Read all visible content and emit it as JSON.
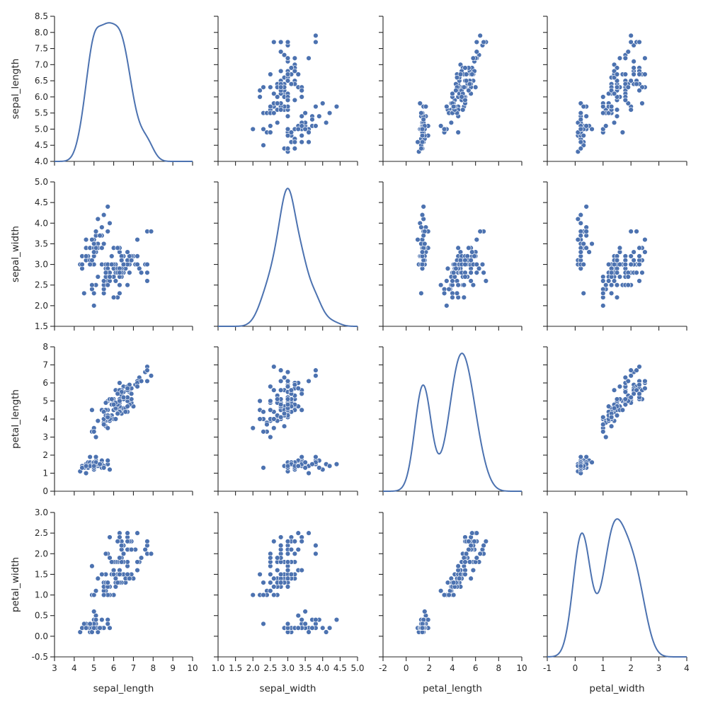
{
  "chart_data": {
    "type": "scatter",
    "kind": "pairplot",
    "diag_kind": "kde",
    "grid": false,
    "variables": [
      "sepal_length",
      "sepal_width",
      "petal_length",
      "petal_width"
    ],
    "colors": {
      "marker": "#4c72b0",
      "kde": "#4c72b0",
      "axes": "#262626",
      "marker_edge": "#ffffff"
    },
    "axes": {
      "sepal_length": {
        "lim": [
          3,
          10
        ],
        "ticks": [
          3,
          4,
          5,
          6,
          7,
          8,
          9,
          10
        ],
        "tick_labels": [
          "3",
          "4",
          "5",
          "6",
          "7",
          "8",
          "9",
          "10"
        ]
      },
      "sepal_width": {
        "lim": [
          1.0,
          5.0
        ],
        "ticks": [
          1.0,
          1.5,
          2.0,
          2.5,
          3.0,
          3.5,
          4.0,
          4.5,
          5.0
        ],
        "tick_labels": [
          "1.0",
          "1.5",
          "2.0",
          "2.5",
          "3.0",
          "3.5",
          "4.0",
          "4.5",
          "5.0"
        ]
      },
      "petal_length": {
        "lim": [
          -2,
          10
        ],
        "ticks": [
          -2,
          0,
          2,
          4,
          6,
          8,
          10
        ],
        "tick_labels": [
          "-2",
          "0",
          "2",
          "4",
          "6",
          "8",
          "10"
        ]
      },
      "petal_width": {
        "lim": [
          -1,
          4
        ],
        "ticks": [
          -1,
          0,
          1,
          2,
          3,
          4
        ],
        "tick_labels": [
          "-1",
          "0",
          "1",
          "2",
          "3",
          "4"
        ]
      }
    },
    "row_axes": {
      "sepal_length": {
        "lim": [
          4.0,
          8.5
        ],
        "ticks": [
          4.0,
          4.5,
          5.0,
          5.5,
          6.0,
          6.5,
          7.0,
          7.5,
          8.0,
          8.5
        ],
        "tick_labels": [
          "4.0",
          "4.5",
          "5.0",
          "5.5",
          "6.0",
          "6.5",
          "7.0",
          "7.5",
          "8.0",
          "8.5"
        ]
      },
      "sepal_width": {
        "lim": [
          1.5,
          5.0
        ],
        "ticks": [
          1.5,
          2.0,
          2.5,
          3.0,
          3.5,
          4.0,
          4.5,
          5.0
        ],
        "tick_labels": [
          "1.5",
          "2.0",
          "2.5",
          "3.0",
          "3.5",
          "4.0",
          "4.5",
          "5.0"
        ]
      },
      "petal_length": {
        "lim": [
          0,
          8
        ],
        "ticks": [
          0,
          1,
          2,
          3,
          4,
          5,
          6,
          7,
          8
        ],
        "tick_labels": [
          "0",
          "1",
          "2",
          "3",
          "4",
          "5",
          "6",
          "7",
          "8"
        ]
      },
      "petal_width": {
        "lim": [
          -0.5,
          3.0
        ],
        "ticks": [
          -0.5,
          0.0,
          0.5,
          1.0,
          1.5,
          2.0,
          2.5,
          3.0
        ],
        "tick_labels": [
          "-0.5",
          "0.0",
          "0.5",
          "1.0",
          "1.5",
          "2.0",
          "2.5",
          "3.0"
        ]
      }
    },
    "data": {
      "sepal_length": [
        5.1,
        4.9,
        4.7,
        4.6,
        5.0,
        5.4,
        4.6,
        5.0,
        4.4,
        4.9,
        5.4,
        4.8,
        4.8,
        4.3,
        5.8,
        5.7,
        5.4,
        5.1,
        5.7,
        5.1,
        5.4,
        5.1,
        4.6,
        5.1,
        4.8,
        5.0,
        5.0,
        5.2,
        5.2,
        4.7,
        4.8,
        5.4,
        5.2,
        5.5,
        4.9,
        5.0,
        5.5,
        4.9,
        4.4,
        5.1,
        5.0,
        4.5,
        4.4,
        5.0,
        5.1,
        4.8,
        5.1,
        4.6,
        5.3,
        5.0,
        7.0,
        6.4,
        6.9,
        5.5,
        6.5,
        5.7,
        6.3,
        4.9,
        6.6,
        5.2,
        5.0,
        5.9,
        6.0,
        6.1,
        5.6,
        6.7,
        5.6,
        5.8,
        6.2,
        5.6,
        5.9,
        6.1,
        6.3,
        6.1,
        6.4,
        6.6,
        6.8,
        6.7,
        6.0,
        5.7,
        5.5,
        5.5,
        5.8,
        6.0,
        5.4,
        6.0,
        6.7,
        6.3,
        5.6,
        5.5,
        5.5,
        6.1,
        5.8,
        5.0,
        5.6,
        5.7,
        5.7,
        6.2,
        5.1,
        5.7,
        6.3,
        5.8,
        7.1,
        6.3,
        6.5,
        7.6,
        4.9,
        7.3,
        6.7,
        7.2,
        6.5,
        6.4,
        6.8,
        5.7,
        5.8,
        6.4,
        6.5,
        7.7,
        7.7,
        6.0,
        6.9,
        5.6,
        7.7,
        6.3,
        6.7,
        7.2,
        6.2,
        6.1,
        6.4,
        7.2,
        7.4,
        7.9,
        6.4,
        6.3,
        6.1,
        7.7,
        6.3,
        6.4,
        6.0,
        6.9,
        6.7,
        6.9,
        5.8,
        6.8,
        6.7,
        6.7,
        6.3,
        6.5,
        6.2,
        5.9
      ],
      "sepal_width": [
        3.5,
        3.0,
        3.2,
        3.1,
        3.6,
        3.9,
        3.4,
        3.4,
        2.9,
        3.1,
        3.7,
        3.4,
        3.0,
        3.0,
        4.0,
        4.4,
        3.9,
        3.5,
        3.8,
        3.8,
        3.4,
        3.7,
        3.6,
        3.3,
        3.4,
        3.0,
        3.4,
        3.5,
        3.4,
        3.2,
        3.1,
        3.4,
        4.1,
        4.2,
        3.1,
        3.2,
        3.5,
        3.6,
        3.0,
        3.4,
        3.5,
        2.3,
        3.2,
        3.5,
        3.8,
        3.0,
        3.8,
        3.2,
        3.7,
        3.3,
        3.2,
        3.2,
        3.1,
        2.3,
        2.8,
        2.8,
        3.3,
        2.4,
        2.9,
        2.7,
        2.0,
        3.0,
        2.2,
        2.9,
        2.9,
        3.1,
        3.0,
        2.7,
        2.2,
        2.5,
        3.2,
        2.8,
        2.5,
        2.8,
        2.9,
        3.0,
        2.8,
        3.0,
        2.9,
        2.6,
        2.4,
        2.4,
        2.7,
        2.7,
        3.0,
        3.4,
        3.1,
        2.3,
        3.0,
        2.5,
        2.6,
        3.0,
        2.6,
        2.3,
        2.7,
        3.0,
        2.9,
        2.9,
        2.5,
        2.8,
        3.3,
        2.7,
        3.0,
        2.9,
        3.0,
        3.0,
        2.5,
        2.9,
        2.5,
        3.6,
        3.2,
        2.7,
        3.0,
        2.5,
        2.8,
        3.2,
        3.0,
        3.8,
        2.6,
        2.2,
        3.2,
        2.8,
        2.8,
        2.7,
        3.3,
        3.2,
        2.8,
        3.0,
        2.8,
        3.0,
        2.8,
        3.8,
        2.8,
        2.8,
        2.6,
        3.0,
        3.4,
        3.1,
        3.0,
        3.1,
        3.1,
        3.1,
        2.7,
        3.2,
        3.3,
        3.0,
        2.5,
        3.0,
        3.4,
        3.0
      ],
      "petal_length": [
        1.4,
        1.4,
        1.3,
        1.5,
        1.4,
        1.7,
        1.4,
        1.5,
        1.4,
        1.5,
        1.5,
        1.6,
        1.4,
        1.1,
        1.2,
        1.5,
        1.3,
        1.4,
        1.7,
        1.5,
        1.7,
        1.5,
        1.0,
        1.7,
        1.9,
        1.6,
        1.6,
        1.5,
        1.4,
        1.6,
        1.6,
        1.5,
        1.5,
        1.4,
        1.5,
        1.2,
        1.3,
        1.4,
        1.3,
        1.5,
        1.3,
        1.3,
        1.3,
        1.6,
        1.9,
        1.4,
        1.6,
        1.4,
        1.5,
        1.4,
        4.7,
        4.5,
        4.9,
        4.0,
        4.6,
        4.5,
        4.7,
        3.3,
        4.6,
        3.9,
        3.5,
        4.2,
        4.0,
        4.7,
        3.6,
        4.4,
        4.5,
        4.1,
        4.5,
        3.9,
        4.8,
        4.0,
        4.9,
        4.7,
        4.3,
        4.4,
        4.8,
        5.0,
        4.5,
        3.5,
        3.8,
        3.7,
        3.9,
        5.1,
        4.5,
        4.5,
        4.7,
        4.4,
        4.1,
        4.0,
        4.4,
        4.6,
        4.0,
        3.3,
        4.2,
        4.2,
        4.2,
        4.3,
        3.0,
        4.1,
        6.0,
        5.1,
        5.9,
        5.6,
        5.8,
        6.6,
        4.5,
        6.3,
        5.8,
        6.1,
        5.1,
        5.3,
        5.5,
        5.0,
        5.1,
        5.3,
        5.5,
        6.7,
        6.9,
        5.0,
        5.7,
        4.9,
        6.7,
        4.9,
        5.7,
        6.0,
        4.8,
        4.9,
        5.6,
        5.8,
        6.1,
        6.4,
        5.6,
        5.1,
        5.6,
        6.1,
        5.6,
        5.5,
        4.8,
        5.4,
        5.6,
        5.1,
        5.1,
        5.9,
        5.7,
        5.2,
        5.0,
        5.2,
        5.4,
        5.1
      ],
      "petal_width": [
        0.2,
        0.2,
        0.2,
        0.2,
        0.2,
        0.4,
        0.3,
        0.2,
        0.2,
        0.1,
        0.2,
        0.2,
        0.1,
        0.1,
        0.2,
        0.4,
        0.4,
        0.3,
        0.3,
        0.3,
        0.2,
        0.4,
        0.2,
        0.5,
        0.2,
        0.2,
        0.4,
        0.2,
        0.2,
        0.2,
        0.2,
        0.4,
        0.1,
        0.2,
        0.2,
        0.2,
        0.2,
        0.1,
        0.2,
        0.2,
        0.3,
        0.3,
        0.2,
        0.6,
        0.4,
        0.3,
        0.2,
        0.2,
        0.2,
        0.2,
        1.4,
        1.5,
        1.5,
        1.3,
        1.5,
        1.3,
        1.6,
        1.0,
        1.3,
        1.4,
        1.0,
        1.5,
        1.0,
        1.4,
        1.3,
        1.4,
        1.5,
        1.0,
        1.5,
        1.1,
        1.8,
        1.3,
        1.5,
        1.2,
        1.3,
        1.4,
        1.4,
        1.7,
        1.5,
        1.0,
        1.1,
        1.0,
        1.2,
        1.6,
        1.5,
        1.6,
        1.5,
        1.3,
        1.3,
        1.3,
        1.2,
        1.4,
        1.2,
        1.0,
        1.3,
        1.2,
        1.3,
        1.3,
        1.1,
        1.3,
        2.5,
        1.9,
        2.1,
        1.8,
        2.2,
        2.1,
        1.7,
        1.8,
        1.8,
        2.5,
        2.0,
        1.9,
        2.1,
        2.0,
        2.4,
        2.3,
        1.8,
        2.2,
        2.3,
        1.5,
        2.3,
        2.0,
        2.0,
        1.8,
        2.1,
        1.8,
        1.8,
        1.8,
        2.1,
        1.6,
        1.9,
        2.0,
        2.2,
        1.5,
        1.4,
        2.3,
        2.4,
        1.8,
        1.8,
        2.1,
        2.4,
        2.3,
        1.9,
        2.3,
        2.5,
        2.3,
        1.9,
        2.0,
        2.3,
        1.8
      ]
    }
  }
}
